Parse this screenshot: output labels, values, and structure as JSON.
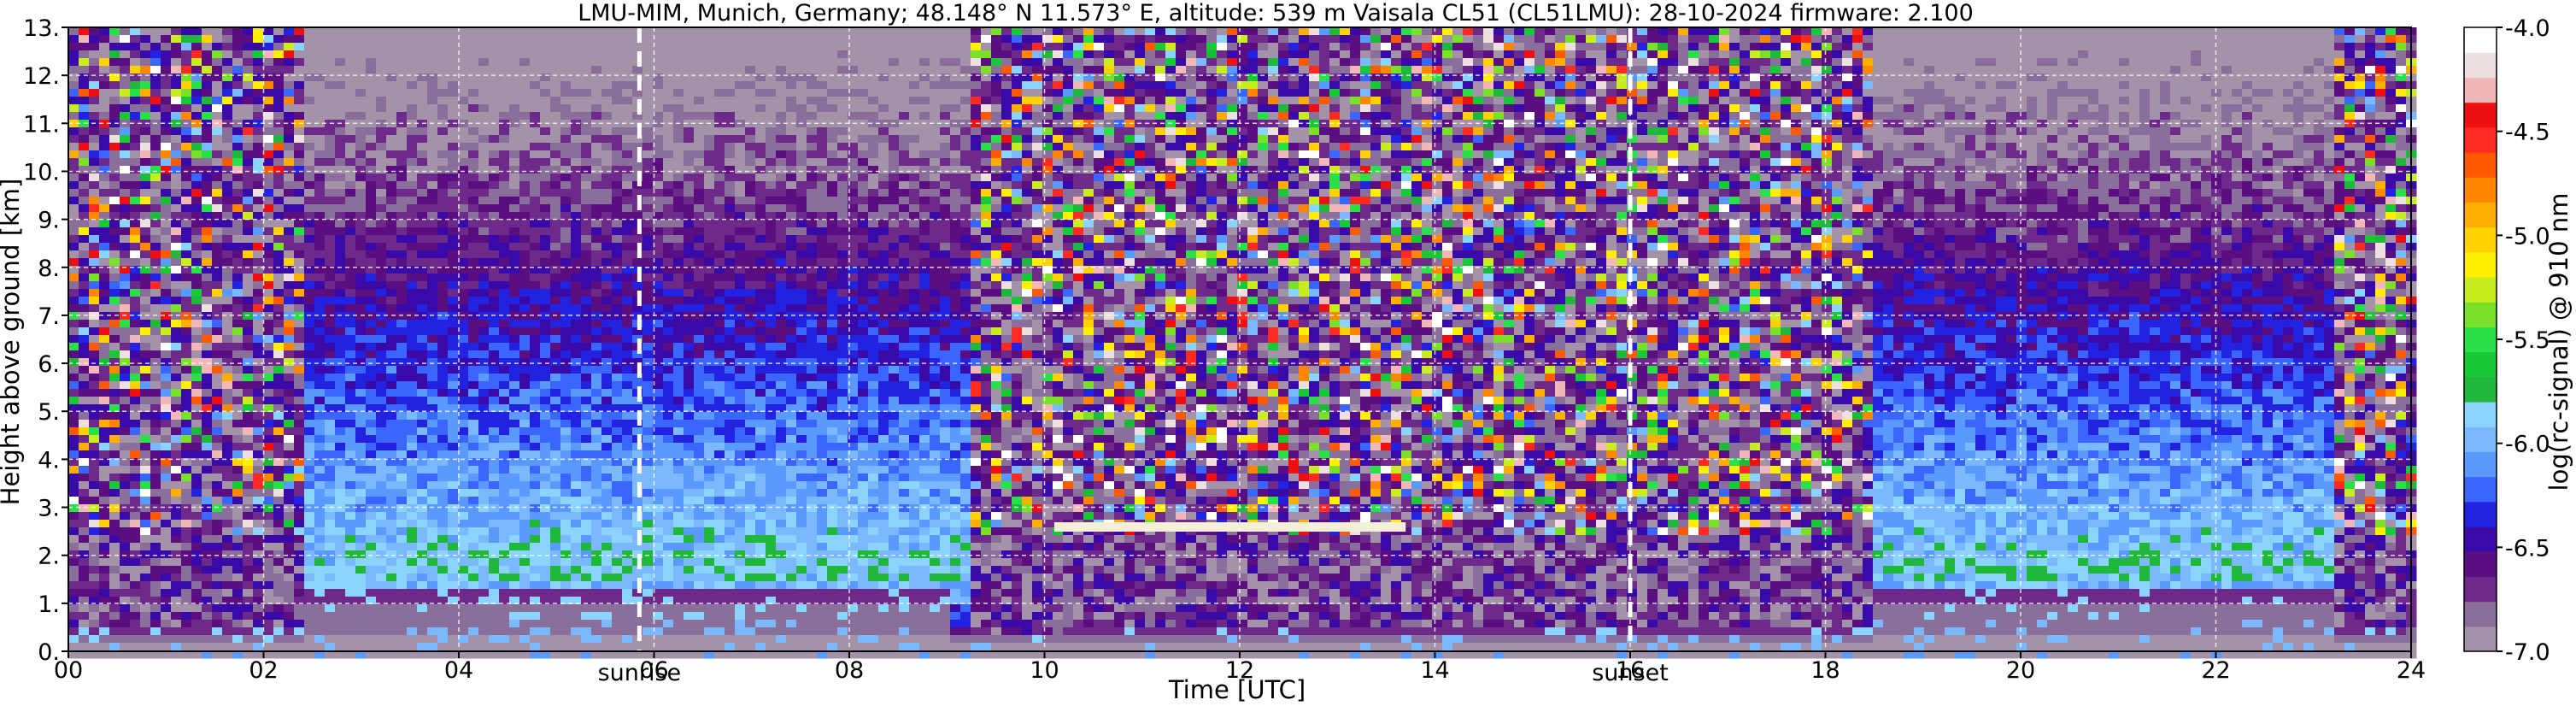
{
  "chart_data": {
    "type": "heatmap",
    "title": "LMU-MIM, Munich, Germany; 48.148° N 11.573° E, altitude: 539 m    Vaisala CL51 (CL51LMU): 28-10-2024    firmware: 2.100",
    "xlabel": "Time [UTC]",
    "ylabel": "Height above ground [km]",
    "colorbar_label": "log(rc-signal) @ 910 nm",
    "xlim": [
      0,
      24
    ],
    "ylim": [
      0,
      13
    ],
    "clim": [
      -7.0,
      -4.0
    ],
    "grid": true,
    "x_ticks": [
      "00",
      "02",
      "04",
      "06",
      "08",
      "10",
      "12",
      "14",
      "16",
      "18",
      "20",
      "22",
      "24"
    ],
    "y_ticks": [
      "0.",
      "1.",
      "2.",
      "3.",
      "4.",
      "5.",
      "6.",
      "7.",
      "8.",
      "9.",
      "10.",
      "11.",
      "12.",
      "13."
    ],
    "colorbar_ticks": [
      "-4.0",
      "-4.5",
      "-5.0",
      "-5.5",
      "-6.0",
      "-6.5",
      "-7.0"
    ],
    "colorbar_values": [
      -4.0,
      -4.5,
      -5.0,
      -5.5,
      -6.0,
      -6.5,
      -7.0
    ],
    "colormap": [
      "#a492a8",
      "#8a6f9a",
      "#6e2a8a",
      "#5a0e80",
      "#3a0aa8",
      "#2222e0",
      "#3a66ff",
      "#5a9aff",
      "#7ab8ff",
      "#8ad4ff",
      "#1fb83a",
      "#18c836",
      "#2ae04a",
      "#7ae02a",
      "#c8ee22",
      "#fff000",
      "#ffd200",
      "#ffae00",
      "#ff8800",
      "#ff5a00",
      "#ff2a22",
      "#ee1010",
      "#f2b8b8",
      "#eee0e0",
      "#ffffff"
    ],
    "annotations": [
      {
        "label": "sunrise",
        "x": 5.85
      },
      {
        "label": "sunset",
        "x": 16.0
      }
    ],
    "aerosol_layer": [
      {
        "t_start": 0.0,
        "t_end": 2.4,
        "top_km": 0.45
      },
      {
        "t_start": 2.4,
        "t_end": 9.0,
        "top_km": 1.3
      },
      {
        "t_start": 9.0,
        "t_end": 10.2,
        "top_km": 0.35
      },
      {
        "t_start": 10.2,
        "t_end": 18.5,
        "top_km": 0.5
      },
      {
        "t_start": 18.5,
        "t_end": 23.2,
        "top_km": 1.3
      },
      {
        "t_start": 23.2,
        "t_end": 24.0,
        "top_km": 0.45
      }
    ],
    "cloud_layer": {
      "t_start": 10.1,
      "t_end": 13.7,
      "height_km": 2.6
    },
    "daytime_background": {
      "t_start": 2.4,
      "t_end": 9.2,
      "t_start_2": 18.5,
      "t_end_2": 23.2
    }
  }
}
